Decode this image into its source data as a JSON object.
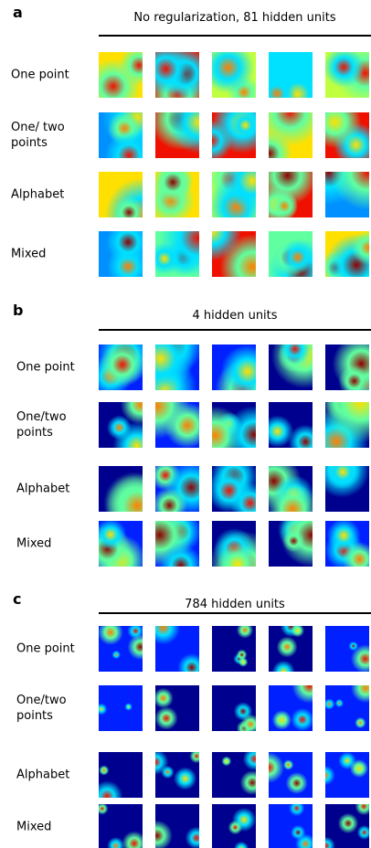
{
  "panels": [
    {
      "letter": "a",
      "title": "No regularization, 81 hidden units",
      "rows": [
        "One point",
        "One/ two points",
        "Alphabet",
        "Mixed"
      ]
    },
    {
      "letter": "b",
      "title": "4 hidden units",
      "rows": [
        "One point",
        "One/two points",
        "Alphabet",
        "Mixed"
      ]
    },
    {
      "letter": "c",
      "title": "784 hidden units",
      "rows": [
        "One point",
        "One/two points",
        "Alphabet",
        "Mixed"
      ]
    }
  ]
}
